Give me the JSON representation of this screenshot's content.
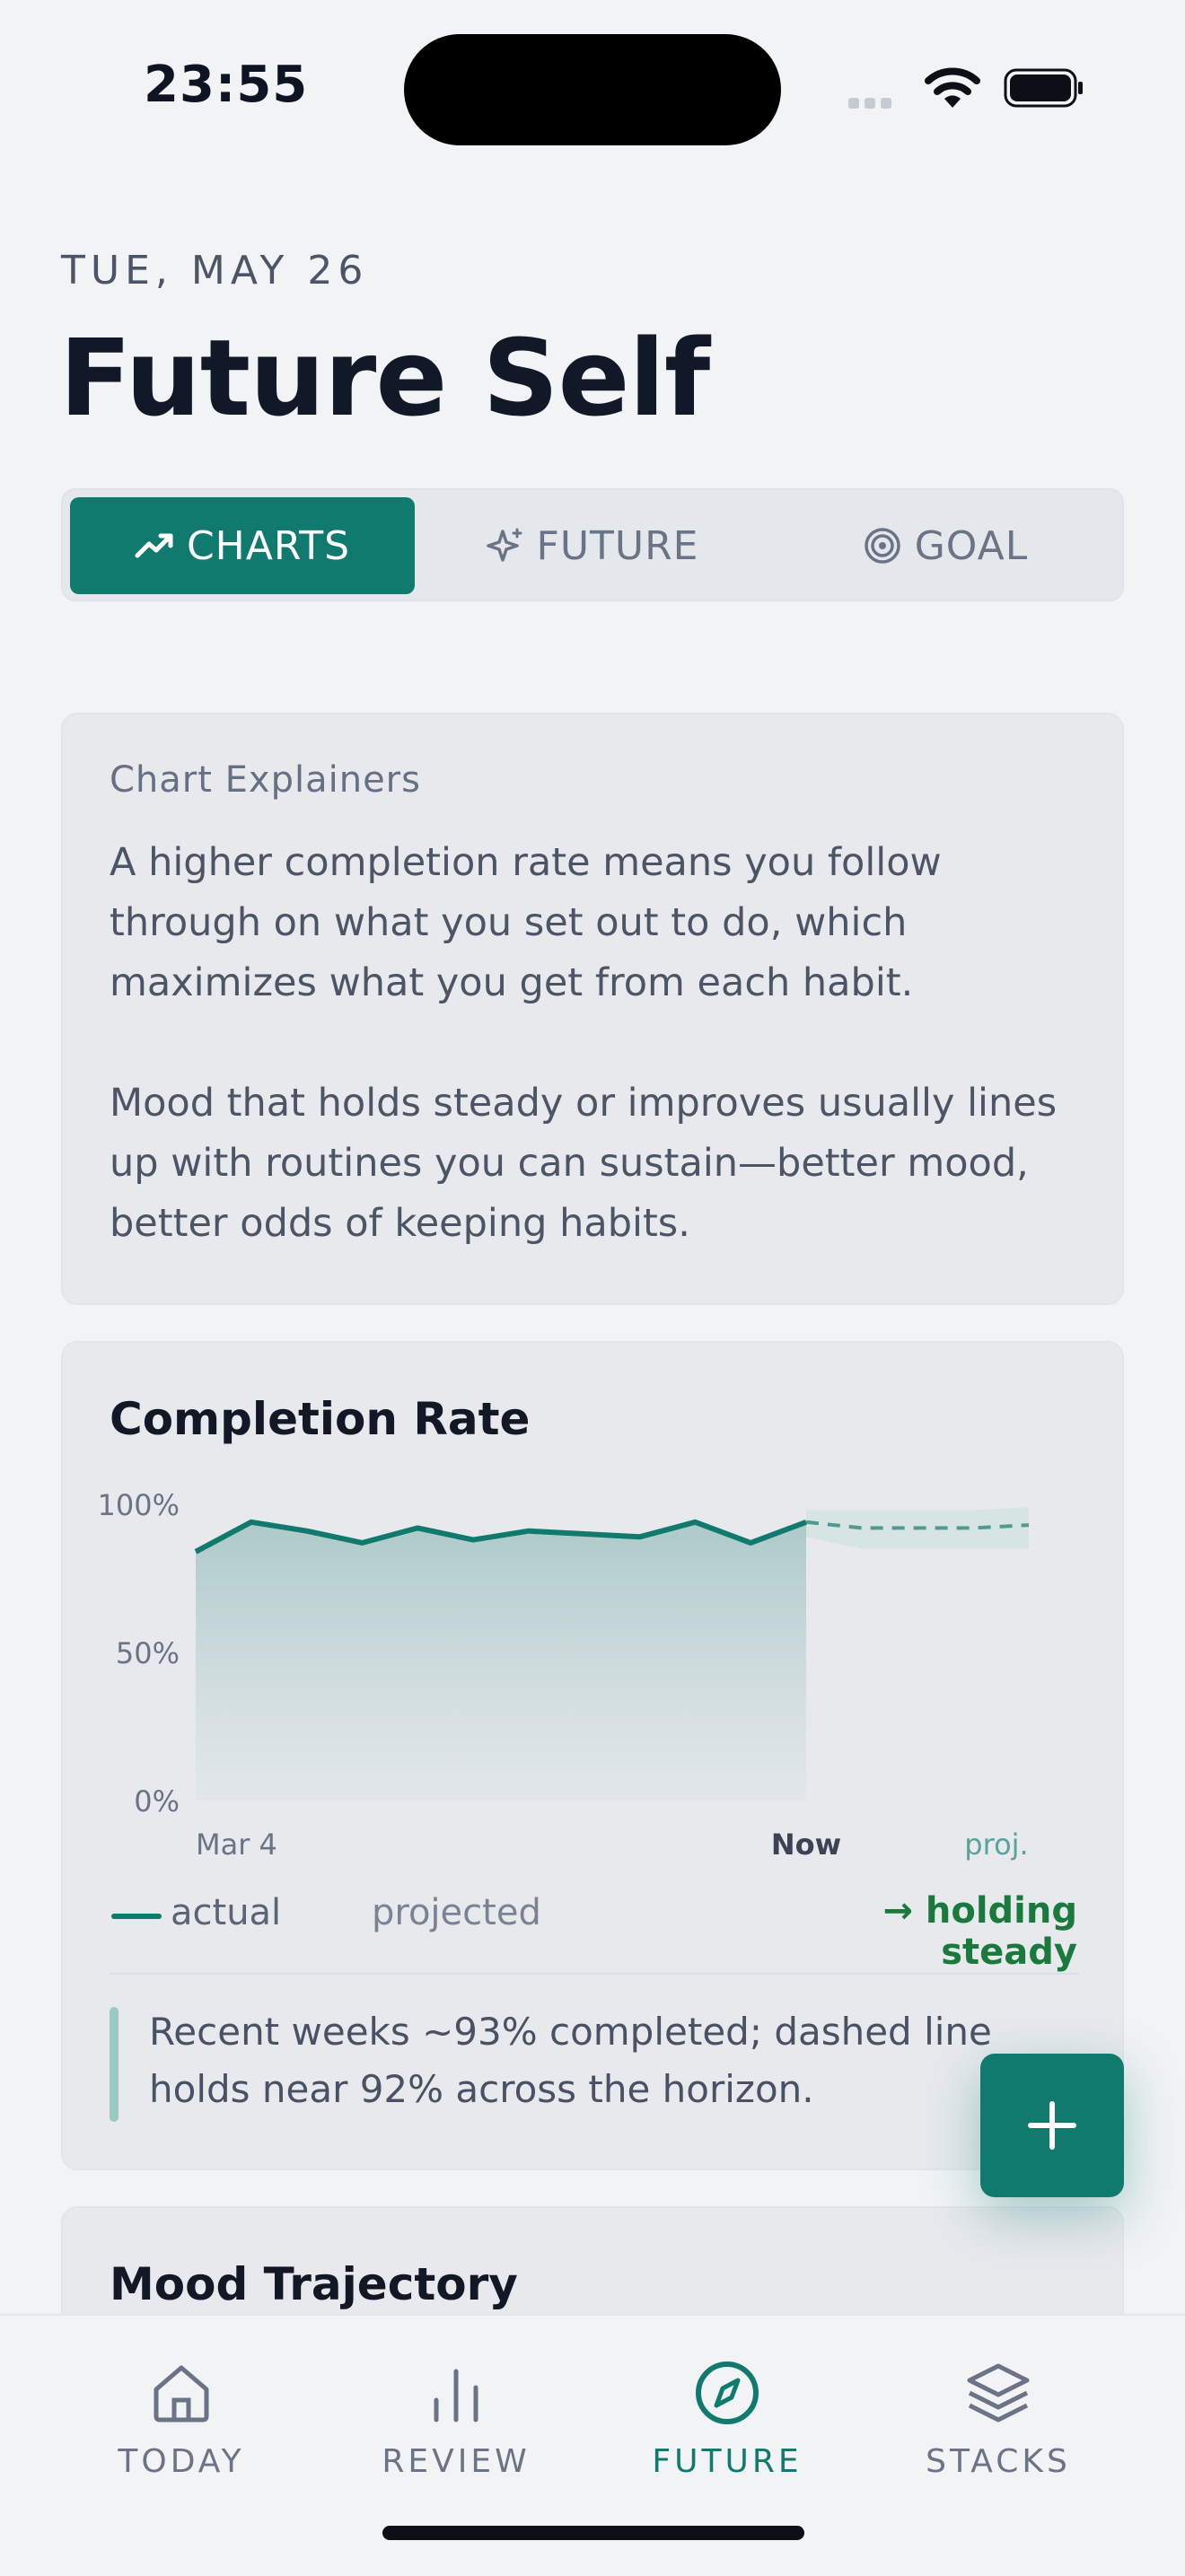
{
  "status": {
    "time": "23:55"
  },
  "header": {
    "date": "TUE, MAY 26",
    "title": "Future Self"
  },
  "segments": [
    {
      "label": "CHARTS",
      "icon": "trending-up-icon",
      "active": true
    },
    {
      "label": "FUTURE",
      "icon": "sparkles-icon",
      "active": false
    },
    {
      "label": "GOAL",
      "icon": "target-icon",
      "active": false
    }
  ],
  "explainers": {
    "heading": "Chart Explainers",
    "p1": "A higher completion rate means you follow through on what you set out to do, which maximizes what you get from each habit.",
    "p2": "Mood that holds steady or improves usually lines up with routines you can sustain—better mood, better odds of keeping habits."
  },
  "completion": {
    "title": "Completion Rate",
    "legend_actual": "actual",
    "legend_projected": "projected",
    "trend": "→ holding steady",
    "note": "Recent weeks ~93% completed; dashed line holds near 92% across the horizon."
  },
  "chart_data": {
    "type": "line",
    "title": "Completion Rate",
    "y_ticks": [
      "100%",
      "50%",
      "0%"
    ],
    "x_labels": [
      "Mar 4",
      "Now",
      "proj."
    ],
    "ylim": [
      0,
      100
    ],
    "series": [
      {
        "name": "actual",
        "values": [
          84,
          94,
          91,
          87,
          92,
          88,
          91,
          90,
          89,
          94,
          87,
          94
        ]
      },
      {
        "name": "projected",
        "values": [
          94,
          92,
          92,
          92,
          93
        ],
        "band": [
          [
            98,
            89
          ],
          [
            98,
            85
          ],
          [
            98,
            85
          ],
          [
            98,
            85
          ],
          [
            99,
            85
          ]
        ]
      }
    ],
    "colors": {
      "line": "#117a6e",
      "area": "#b7cfce",
      "band": "#d6e4e2"
    }
  },
  "mood": {
    "title": "Mood Trajectory"
  },
  "tabbar": [
    {
      "label": "TODAY",
      "icon": "home-icon",
      "active": false
    },
    {
      "label": "REVIEW",
      "icon": "bar-chart-icon",
      "active": false
    },
    {
      "label": "FUTURE",
      "icon": "compass-icon",
      "active": true
    },
    {
      "label": "STACKS",
      "icon": "layers-icon",
      "active": false
    }
  ],
  "accent": "#117a6e"
}
